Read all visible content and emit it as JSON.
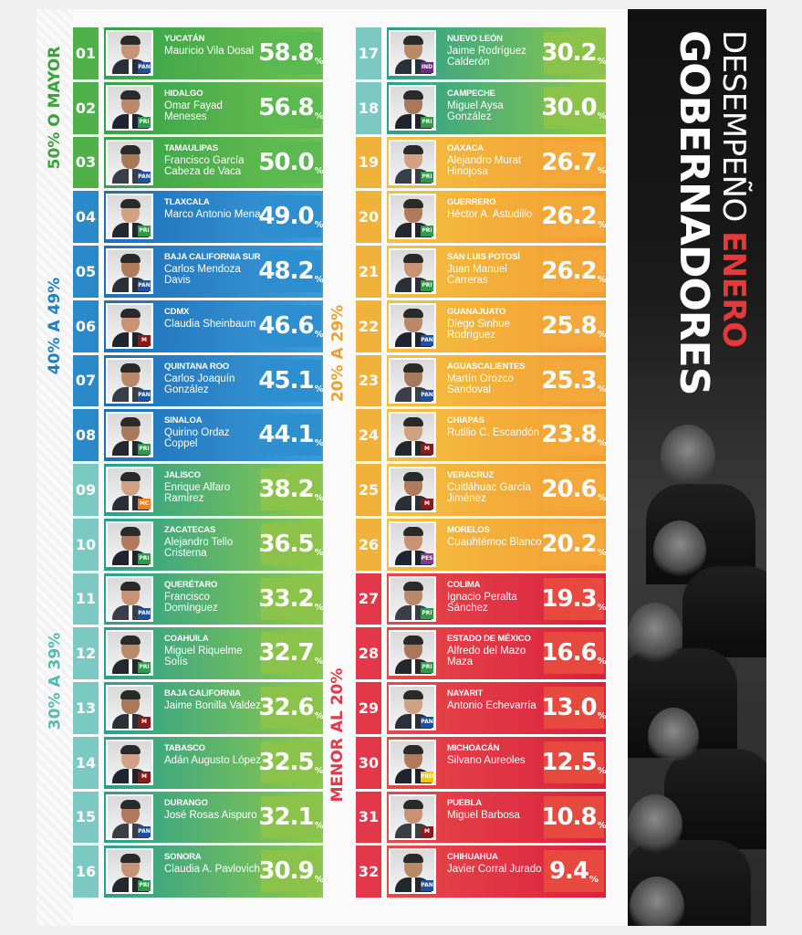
{
  "title": {
    "line1": "GOBERNADORES",
    "line2_prefix": "DESEMPEÑO ",
    "line2_accent": "ENERO"
  },
  "colors": {
    "green": "#4fb04a",
    "blue": "#2a89c9",
    "teal": "#4fb89a",
    "yellow": "#f0b23a",
    "red": "#e2384a",
    "title_accent": "#e43a3a"
  },
  "groups": [
    {
      "label": "50% O MAYOR",
      "color": "#4fb04a",
      "text_color": "#3aa33a"
    },
    {
      "label": "40% A 49%",
      "color": "#2a89c9",
      "text_color": "#1f7fc4"
    },
    {
      "label": "30% A 39%",
      "color": "#7cc9c4",
      "text_color": "#55bcb2"
    },
    {
      "label": "20% A 29%",
      "color": "#f0b23a",
      "text_color": "#eba230"
    },
    {
      "label": "MENOR AL 20%",
      "color": "#e2384a",
      "text_color": "#e2384a"
    }
  ],
  "chart_data": {
    "type": "bar",
    "title": "GOBERNADORES DESEMPEÑO ENERO",
    "unit": "%",
    "categories": [
      "01",
      "02",
      "03",
      "04",
      "05",
      "06",
      "07",
      "08",
      "09",
      "10",
      "11",
      "12",
      "13",
      "14",
      "15",
      "16",
      "17",
      "18",
      "19",
      "20",
      "21",
      "22",
      "23",
      "24",
      "25",
      "26",
      "27",
      "28",
      "29",
      "30",
      "31",
      "32"
    ],
    "values": [
      58.8,
      56.8,
      50.0,
      49.0,
      48.2,
      46.6,
      45.1,
      44.1,
      38.2,
      36.5,
      33.2,
      32.7,
      32.6,
      32.5,
      32.1,
      30.9,
      30.2,
      30.0,
      26.7,
      26.2,
      26.2,
      25.8,
      25.3,
      23.8,
      20.6,
      20.2,
      19.3,
      16.6,
      13.0,
      12.5,
      10.8,
      9.4
    ],
    "rows": [
      {
        "rank": "01",
        "state": "YUCATÁN",
        "name": "Mauricio Vila Dosal",
        "value": "58.8",
        "party": "PAN",
        "group": 0
      },
      {
        "rank": "02",
        "state": "HIDALGO",
        "name": "Omar Fayad Meneses",
        "value": "56.8",
        "party": "PRI",
        "group": 0
      },
      {
        "rank": "03",
        "state": "TAMAULIPAS",
        "name": "Francisco García Cabeza de Vaca",
        "value": "50.0",
        "party": "PAN",
        "group": 0
      },
      {
        "rank": "04",
        "state": "TLAXCALA",
        "name": "Marco Antonio Mena",
        "value": "49.0",
        "party": "PRI",
        "group": 1
      },
      {
        "rank": "05",
        "state": "BAJA CALIFORNIA SUR",
        "name": "Carlos Mendoza Davis",
        "value": "48.2",
        "party": "PAN",
        "group": 1
      },
      {
        "rank": "06",
        "state": "CDMX",
        "name": "Claudia Sheinbaum",
        "value": "46.6",
        "party": "MORENA",
        "group": 1
      },
      {
        "rank": "07",
        "state": "QUINTANA ROO",
        "name": "Carlos Joaquín González",
        "value": "45.1",
        "party": "PAN",
        "group": 1
      },
      {
        "rank": "08",
        "state": "SINALOA",
        "name": "Quirino Ordaz Coppel",
        "value": "44.1",
        "party": "PRI",
        "group": 1
      },
      {
        "rank": "09",
        "state": "JALISCO",
        "name": "Enrique Alfaro Ramírez",
        "value": "38.2",
        "party": "MC",
        "group": 2
      },
      {
        "rank": "10",
        "state": "ZACATECAS",
        "name": "Alejandro Tello Cristerna",
        "value": "36.5",
        "party": "PRI",
        "group": 2
      },
      {
        "rank": "11",
        "state": "QUERÉTARO",
        "name": "Francisco Domínguez",
        "value": "33.2",
        "party": "PAN",
        "group": 2
      },
      {
        "rank": "12",
        "state": "COAHUILA",
        "name": "Miguel Riquelme Solís",
        "value": "32.7",
        "party": "PRI",
        "group": 2
      },
      {
        "rank": "13",
        "state": "BAJA CALIFORNIA",
        "name": "Jaime Bonilla Valdez",
        "value": "32.6",
        "party": "MORENA",
        "group": 2
      },
      {
        "rank": "14",
        "state": "TABASCO",
        "name": "Adán Augusto López",
        "value": "32.5",
        "party": "MORENA",
        "group": 2
      },
      {
        "rank": "15",
        "state": "DURANGO",
        "name": "José Rosas Aispuro",
        "value": "32.1",
        "party": "PAN",
        "group": 2
      },
      {
        "rank": "16",
        "state": "SONORA",
        "name": "Claudia A. Pavlovich",
        "value": "30.9",
        "party": "PRI",
        "group": 2
      },
      {
        "rank": "17",
        "state": "NUEVO LEÓN",
        "name": "Jaime Rodríguez Calderón",
        "value": "30.2",
        "party": "IND",
        "group": 2
      },
      {
        "rank": "18",
        "state": "CAMPECHE",
        "name": "Miguel Aysa González",
        "value": "30.0",
        "party": "PRI",
        "group": 2
      },
      {
        "rank": "19",
        "state": "OAXACA",
        "name": "Alejandro Murat Hinojosa",
        "value": "26.7",
        "party": "PRI",
        "group": 3
      },
      {
        "rank": "20",
        "state": "GUERRERO",
        "name": "Héctor A. Astudillo",
        "value": "26.2",
        "party": "PRI",
        "group": 3
      },
      {
        "rank": "21",
        "state": "SAN LUIS POTOSÍ",
        "name": "Juan Manuel Carreras",
        "value": "26.2",
        "party": "PRI",
        "group": 3
      },
      {
        "rank": "22",
        "state": "GUANAJUATO",
        "name": "Diego Sinhue Rodríguez",
        "value": "25.8",
        "party": "PAN",
        "group": 3
      },
      {
        "rank": "23",
        "state": "AGUASCALIENTES",
        "name": "Martín Orozco Sandoval",
        "value": "25.3",
        "party": "PAN",
        "group": 3
      },
      {
        "rank": "24",
        "state": "CHIAPAS",
        "name": "Rutilio C. Escandón",
        "value": "23.8",
        "party": "MORENA",
        "group": 3
      },
      {
        "rank": "25",
        "state": "VERACRUZ",
        "name": "Cuitláhuac García Jiménez",
        "value": "20.6",
        "party": "MORENA",
        "group": 3
      },
      {
        "rank": "26",
        "state": "MORELOS",
        "name": "Cuauhtémoc Blanco",
        "value": "20.2",
        "party": "PES",
        "group": 3
      },
      {
        "rank": "27",
        "state": "COLIMA",
        "name": "Ignacio Peralta Sánchez",
        "value": "19.3",
        "party": "PRI",
        "group": 4
      },
      {
        "rank": "28",
        "state": "ESTADO DE MÉXICO",
        "name": "Alfredo del Mazo Maza",
        "value": "16.6",
        "party": "PRI",
        "group": 4
      },
      {
        "rank": "29",
        "state": "NAYARIT",
        "name": "Antonio Echevarría",
        "value": "13.0",
        "party": "PAN",
        "group": 4
      },
      {
        "rank": "30",
        "state": "MICHOACÁN",
        "name": "Silvano Aureoles",
        "value": "12.5",
        "party": "PRD",
        "group": 4
      },
      {
        "rank": "31",
        "state": "PUEBLA",
        "name": "Miguel Barbosa",
        "value": "10.8",
        "party": "MORENA",
        "group": 4
      },
      {
        "rank": "32",
        "state": "CHIHUAHUA",
        "name": "Javier Corral Jurado",
        "value": "9.4",
        "party": "PAN",
        "group": 4
      }
    ]
  }
}
